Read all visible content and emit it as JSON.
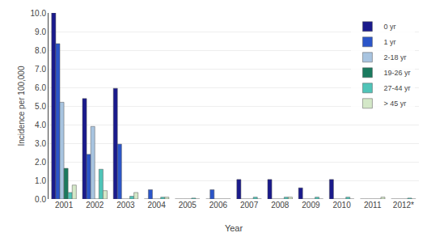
{
  "chart_data": {
    "type": "bar",
    "categories": [
      "2001",
      "2002",
      "2003",
      "2004",
      "2005",
      "2006",
      "2007",
      "2008",
      "2009",
      "2010",
      "2011",
      "2012*"
    ],
    "series": [
      {
        "name": "0 yr",
        "color": "#1a1a8c",
        "values": [
          10.0,
          5.4,
          5.95,
          0.0,
          0.0,
          0.0,
          1.05,
          1.05,
          0.6,
          1.05,
          0.0,
          0.0
        ]
      },
      {
        "name": "1 yr",
        "color": "#2b55c9",
        "values": [
          8.35,
          2.4,
          2.95,
          0.5,
          0.0,
          0.5,
          0.0,
          0.0,
          0.0,
          0.0,
          0.0,
          0.0
        ]
      },
      {
        "name": "2-18 yr",
        "color": "#a8c4e0",
        "values": [
          5.2,
          3.9,
          0.0,
          0.0,
          0.0,
          0.0,
          0.0,
          0.0,
          0.0,
          0.0,
          0.0,
          0.0
        ]
      },
      {
        "name": "19-26 yr",
        "color": "#1a7a5e",
        "values": [
          1.65,
          0.0,
          0.0,
          0.0,
          0.0,
          0.0,
          0.0,
          0.0,
          0.0,
          0.0,
          0.0,
          0.0
        ]
      },
      {
        "name": "27-44 yr",
        "color": "#4fc4b8",
        "values": [
          0.35,
          1.6,
          0.15,
          0.1,
          0.05,
          0.0,
          0.1,
          0.1,
          0.1,
          0.1,
          0.0,
          0.05
        ]
      },
      {
        "name": "> 45 yr",
        "color": "#d4e8c8",
        "values": [
          0.75,
          0.45,
          0.35,
          0.1,
          0.0,
          0.0,
          0.0,
          0.1,
          0.0,
          0.0,
          0.1,
          0.0
        ]
      }
    ],
    "xlabel": "Year",
    "ylabel": "Incidence per 100,000",
    "ylim": [
      0,
      10.0
    ],
    "yticks": [
      {
        "value": 0.0,
        "label": "0.0"
      },
      {
        "value": 1.0,
        "label": "1.0"
      },
      {
        "value": 2.0,
        "label": "2.0"
      },
      {
        "value": 3.0,
        "label": "3.0"
      },
      {
        "value": 4.0,
        "label": "4.0"
      },
      {
        "value": 5.0,
        "label": "5.0"
      },
      {
        "value": 6.0,
        "label": "6.0"
      },
      {
        "value": 7.0,
        "label": "7.0"
      },
      {
        "value": 8.0,
        "label": "8.0"
      },
      {
        "value": 9.0,
        "label": "9.0"
      },
      {
        "value": 10.0,
        "label": "10.0"
      }
    ],
    "grid": true,
    "legend": "upper right"
  }
}
